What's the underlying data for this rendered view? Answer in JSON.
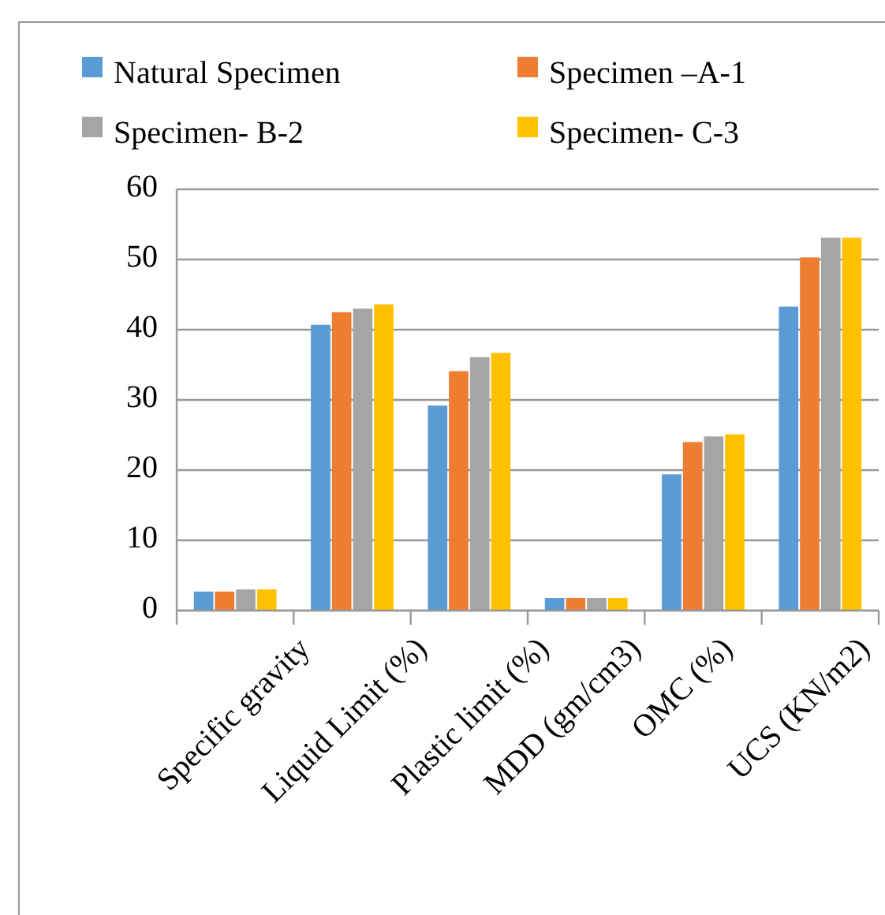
{
  "chart_data": {
    "type": "bar",
    "categories": [
      "Specific gravity",
      "Liquid Limit (%)",
      "Plastic limit (%)",
      "MDD (gm/cm3)",
      "OMC (%)",
      "UCS (KN/m2)"
    ],
    "series": [
      {
        "name": "Natural Specimen",
        "color": "#5b9bd5",
        "values": [
          2.7,
          40.7,
          29.2,
          1.8,
          19.4,
          43.3
        ]
      },
      {
        "name": "Specimen –A-1",
        "color": "#ed7d31",
        "values": [
          2.7,
          42.5,
          34.1,
          1.8,
          24.0,
          50.3
        ]
      },
      {
        "name": "Specimen- B-2",
        "color": "#a5a5a5",
        "values": [
          3.0,
          43.0,
          36.1,
          1.8,
          24.8,
          53.1
        ]
      },
      {
        "name": "Specimen- C-3",
        "color": "#ffc000",
        "values": [
          3.0,
          43.6,
          36.7,
          1.8,
          25.1,
          53.1
        ]
      }
    ],
    "ylim": [
      0,
      60
    ],
    "yticks": [
      0,
      10,
      20,
      30,
      40,
      50,
      60
    ],
    "grid": "y",
    "legend": "top"
  }
}
